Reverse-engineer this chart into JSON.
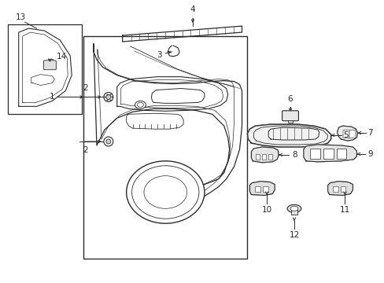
{
  "bg_color": "#ffffff",
  "line_color": "#2a2a2a",
  "fig_width": 4.89,
  "fig_height": 3.6,
  "dpi": 100,
  "lw_main": 1.0,
  "lw_thin": 0.6,
  "lw_leader": 0.7,
  "label_fs": 7.5
}
